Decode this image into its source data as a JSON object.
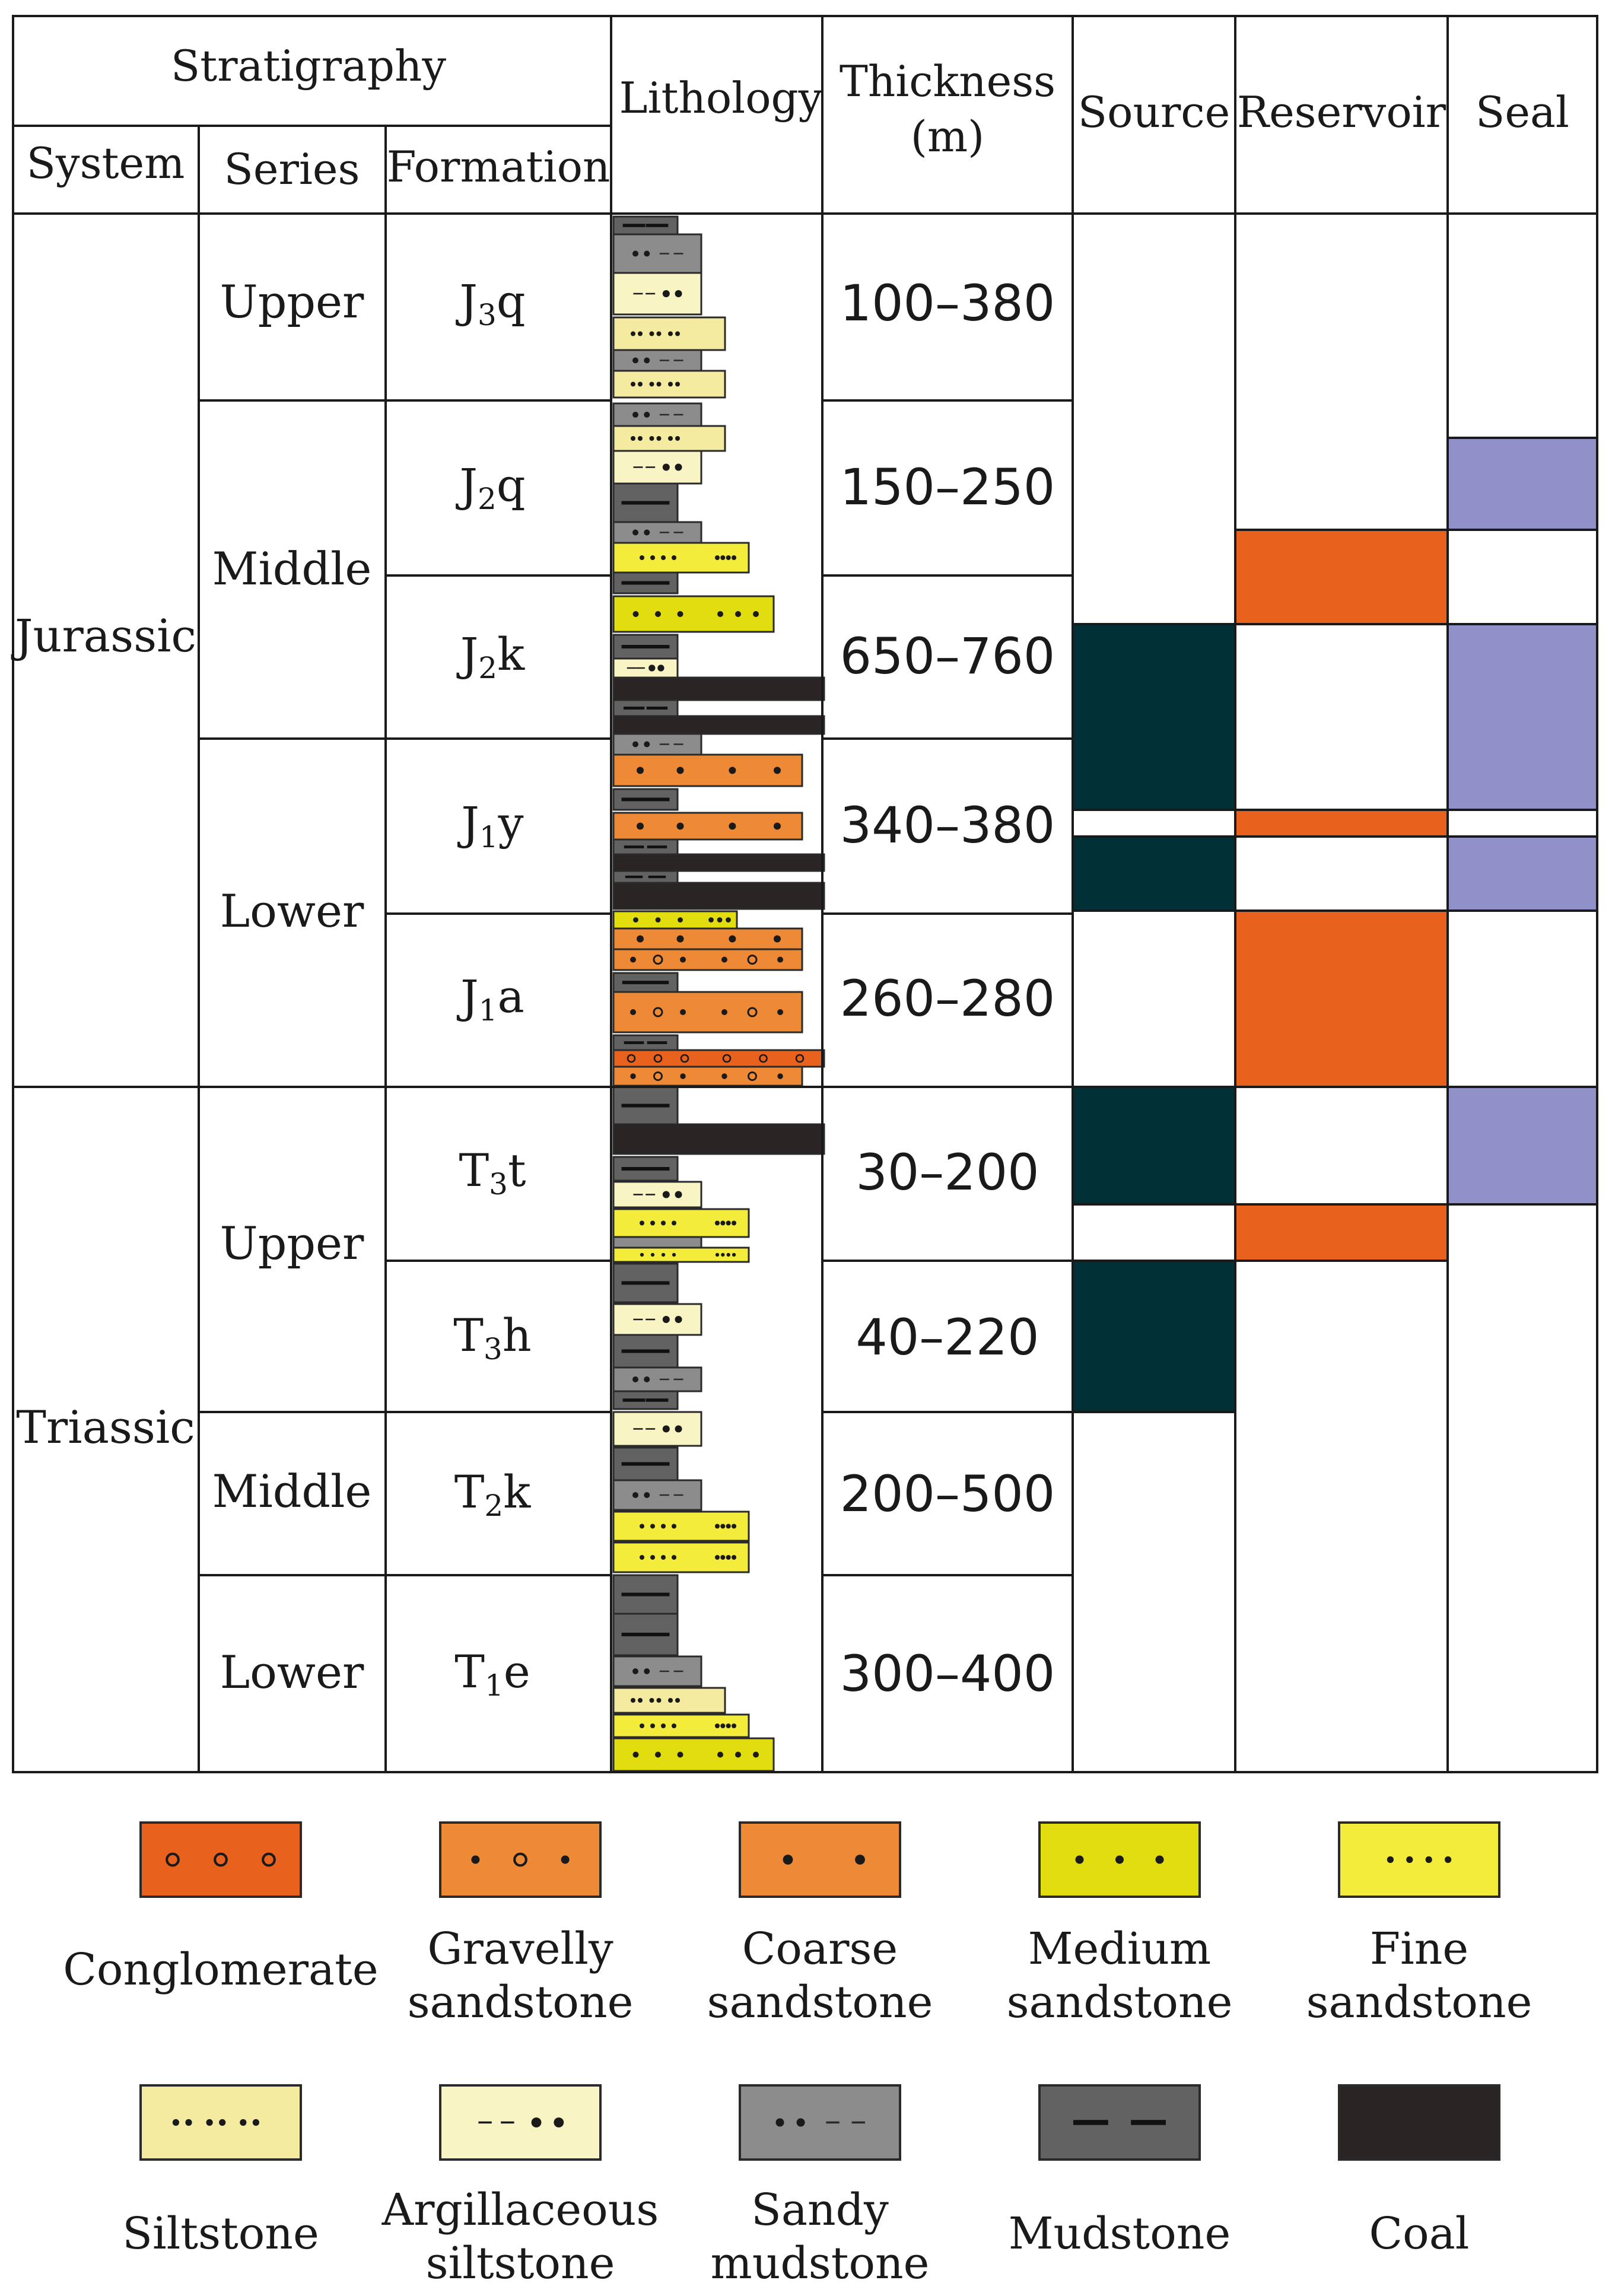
{
  "header": {
    "stratigraphy": "Stratigraphy",
    "system": "System",
    "series": "Series",
    "formation": "Formation",
    "lithology": "Lithology",
    "thickness_line1": "Thickness",
    "thickness_line2": "(m)",
    "source": "Source",
    "reservoir": "Reservoir",
    "seal": "Seal"
  },
  "systems": [
    "Jurassic",
    "Triassic"
  ],
  "series": [
    "Upper",
    "Middle",
    "Lower",
    "Upper",
    "Middle",
    "Lower"
  ],
  "formations": [
    {
      "main": "J",
      "sub": "3",
      "tail": "q",
      "thickness": "100–380"
    },
    {
      "main": "J",
      "sub": "2",
      "tail": "q",
      "thickness": "150–250"
    },
    {
      "main": "J",
      "sub": "2",
      "tail": "k",
      "thickness": "650–760"
    },
    {
      "main": "J",
      "sub": "1",
      "tail": "y",
      "thickness": "340–380"
    },
    {
      "main": "J",
      "sub": "1",
      "tail": "a",
      "thickness": "260–280"
    },
    {
      "main": "T",
      "sub": "3",
      "tail": "t",
      "thickness": "30–200"
    },
    {
      "main": "T",
      "sub": "3",
      "tail": "h",
      "thickness": "40–220"
    },
    {
      "main": "T",
      "sub": "2",
      "tail": "k",
      "thickness": "200–500"
    },
    {
      "main": "T",
      "sub": "1",
      "tail": "e",
      "thickness": "300–400"
    }
  ],
  "legend": [
    {
      "line1": "Conglomerate",
      "line2": "",
      "pattern": "conglomerate"
    },
    {
      "line1": "Gravelly",
      "line2": "sandstone",
      "pattern": "gravelly"
    },
    {
      "line1": "Coarse",
      "line2": "sandstone",
      "pattern": "coarse"
    },
    {
      "line1": "Medium",
      "line2": "sandstone",
      "pattern": "medium"
    },
    {
      "line1": "Fine",
      "line2": "sandstone",
      "pattern": "fine"
    },
    {
      "line1": "Siltstone",
      "line2": "",
      "pattern": "siltstone"
    },
    {
      "line1": "Argillaceous",
      "line2": "siltstone",
      "pattern": "argsilt"
    },
    {
      "line1": "Sandy",
      "line2": "mudstone",
      "pattern": "sandymud"
    },
    {
      "line1": "Mudstone",
      "line2": "",
      "pattern": "mudstone"
    },
    {
      "line1": "Coal",
      "line2": "",
      "pattern": "coal"
    }
  ],
  "colors": {
    "conglomerate": "#e8621d",
    "gravelly": "#ee8a35",
    "coarse": "#ee8a35",
    "medium": "#e2dd0e",
    "fine": "#f3ec3a",
    "siltstone": "#f4eba0",
    "argsilt": "#f8f4c4",
    "sandymud": "#8c8c8c",
    "mudstone": "#626262",
    "coal": "#2b2424",
    "source": "#013036",
    "reservoir": "#e8621d",
    "seal": "#9191c9"
  }
}
